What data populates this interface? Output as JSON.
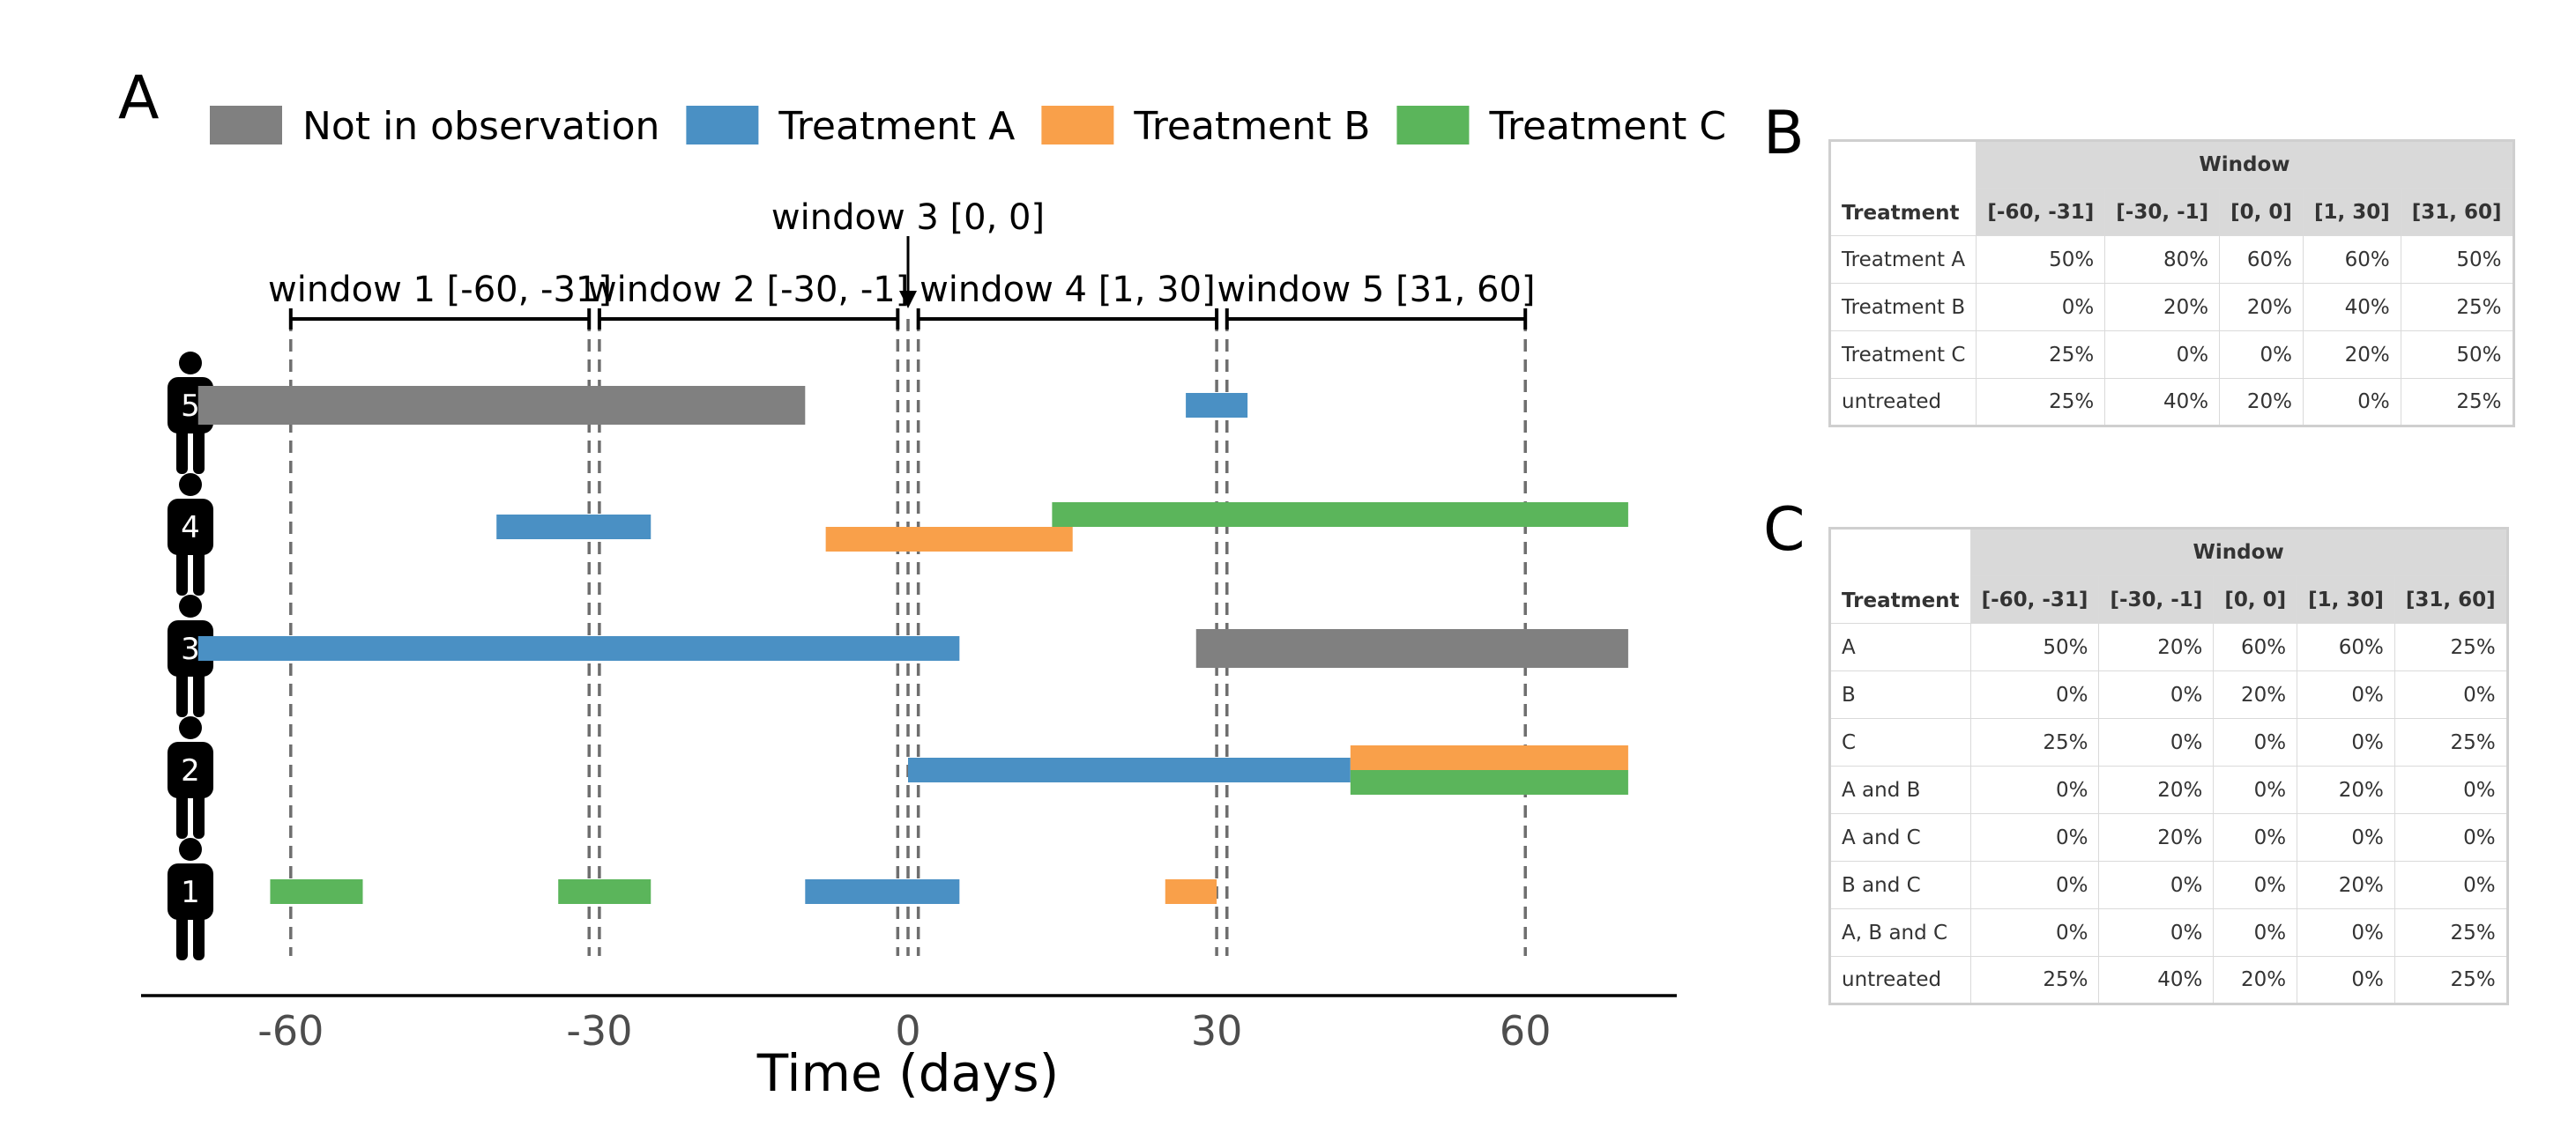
{
  "panels": {
    "a": "A",
    "b": "B",
    "c": "C"
  },
  "chart_data": {
    "type": "timeline",
    "xlabel": "Time (days)",
    "xticks": [
      -60,
      -30,
      0,
      30,
      60
    ],
    "xlim": [
      -75,
      75
    ],
    "colors": {
      "Not in observation": "#808080",
      "Treatment A": "#4a90c4",
      "Treatment B": "#f9a04a",
      "Treatment C": "#5bb55b"
    },
    "legend": [
      "Not in observation",
      "Treatment A",
      "Treatment B",
      "Treatment C"
    ],
    "windows": [
      {
        "label": "window 1 [-60, -31]",
        "start": -60,
        "end": -31
      },
      {
        "label": "window 2 [-30, -1]",
        "start": -30,
        "end": -1
      },
      {
        "label": "window 3 [0, 0]",
        "start": 0,
        "end": 0
      },
      {
        "label": "window 4 [1, 30]",
        "start": 1,
        "end": 30
      },
      {
        "label": "window 5 [31, 60]",
        "start": 31,
        "end": 60
      }
    ],
    "persons": [
      {
        "id": "5",
        "bars": [
          {
            "type": "Not in observation",
            "start": -69,
            "end": -10,
            "lane": 0,
            "size": "thick"
          },
          {
            "type": "Treatment A",
            "start": 27,
            "end": 33,
            "lane": 0,
            "size": "thin"
          }
        ]
      },
      {
        "id": "4",
        "bars": [
          {
            "type": "Treatment A",
            "start": -40,
            "end": -25,
            "lane": 0,
            "size": "thin"
          },
          {
            "type": "Treatment B",
            "start": -8,
            "end": 16,
            "lane": 1,
            "size": "thin"
          },
          {
            "type": "Treatment C",
            "start": 14,
            "end": 70,
            "lane": -1,
            "size": "thin"
          }
        ]
      },
      {
        "id": "3",
        "bars": [
          {
            "type": "Treatment A",
            "start": -69,
            "end": 5,
            "lane": 0,
            "size": "thin"
          },
          {
            "type": "Not in observation",
            "start": 28,
            "end": 70,
            "lane": 0,
            "size": "thick"
          }
        ]
      },
      {
        "id": "2",
        "bars": [
          {
            "type": "Treatment A",
            "start": 0,
            "end": 43,
            "lane": 0,
            "size": "thin"
          },
          {
            "type": "Treatment B",
            "start": 43,
            "end": 70,
            "lane": -1,
            "size": "thin"
          },
          {
            "type": "Treatment C",
            "start": 43,
            "end": 70,
            "lane": 1,
            "size": "thin"
          }
        ]
      },
      {
        "id": "1",
        "bars": [
          {
            "type": "Treatment C",
            "start": -62,
            "end": -53,
            "lane": 0,
            "size": "thin"
          },
          {
            "type": "Treatment C",
            "start": -34,
            "end": -25,
            "lane": 0,
            "size": "thin"
          },
          {
            "type": "Treatment A",
            "start": -10,
            "end": 5,
            "lane": 0,
            "size": "thin"
          },
          {
            "type": "Treatment B",
            "start": 25,
            "end": 30,
            "lane": 0,
            "size": "thin"
          }
        ]
      }
    ]
  },
  "table_b": {
    "group_header": "Window",
    "row_header": "Treatment",
    "columns": [
      "[-60, -31]",
      "[-30, -1]",
      "[0, 0]",
      "[1, 30]",
      "[31, 60]"
    ],
    "rows": [
      {
        "label": "Treatment A",
        "values": [
          "50%",
          "80%",
          "60%",
          "60%",
          "50%"
        ]
      },
      {
        "label": "Treatment B",
        "values": [
          "0%",
          "20%",
          "20%",
          "40%",
          "25%"
        ]
      },
      {
        "label": "Treatment C",
        "values": [
          "25%",
          "0%",
          "0%",
          "20%",
          "50%"
        ]
      },
      {
        "label": "untreated",
        "values": [
          "25%",
          "40%",
          "20%",
          "0%",
          "25%"
        ]
      }
    ]
  },
  "table_c": {
    "group_header": "Window",
    "row_header": "Treatment",
    "columns": [
      "[-60, -31]",
      "[-30, -1]",
      "[0, 0]",
      "[1, 30]",
      "[31, 60]"
    ],
    "rows": [
      {
        "label": "A",
        "values": [
          "50%",
          "20%",
          "60%",
          "60%",
          "25%"
        ]
      },
      {
        "label": "B",
        "values": [
          "0%",
          "0%",
          "20%",
          "0%",
          "0%"
        ]
      },
      {
        "label": "C",
        "values": [
          "25%",
          "0%",
          "0%",
          "0%",
          "25%"
        ]
      },
      {
        "label": "A and B",
        "values": [
          "0%",
          "20%",
          "0%",
          "20%",
          "0%"
        ]
      },
      {
        "label": "A and C",
        "values": [
          "0%",
          "20%",
          "0%",
          "0%",
          "0%"
        ]
      },
      {
        "label": "B and C",
        "values": [
          "0%",
          "0%",
          "0%",
          "20%",
          "0%"
        ]
      },
      {
        "label": "A, B and C",
        "values": [
          "0%",
          "0%",
          "0%",
          "0%",
          "25%"
        ]
      },
      {
        "label": "untreated",
        "values": [
          "25%",
          "40%",
          "20%",
          "0%",
          "25%"
        ]
      }
    ]
  }
}
